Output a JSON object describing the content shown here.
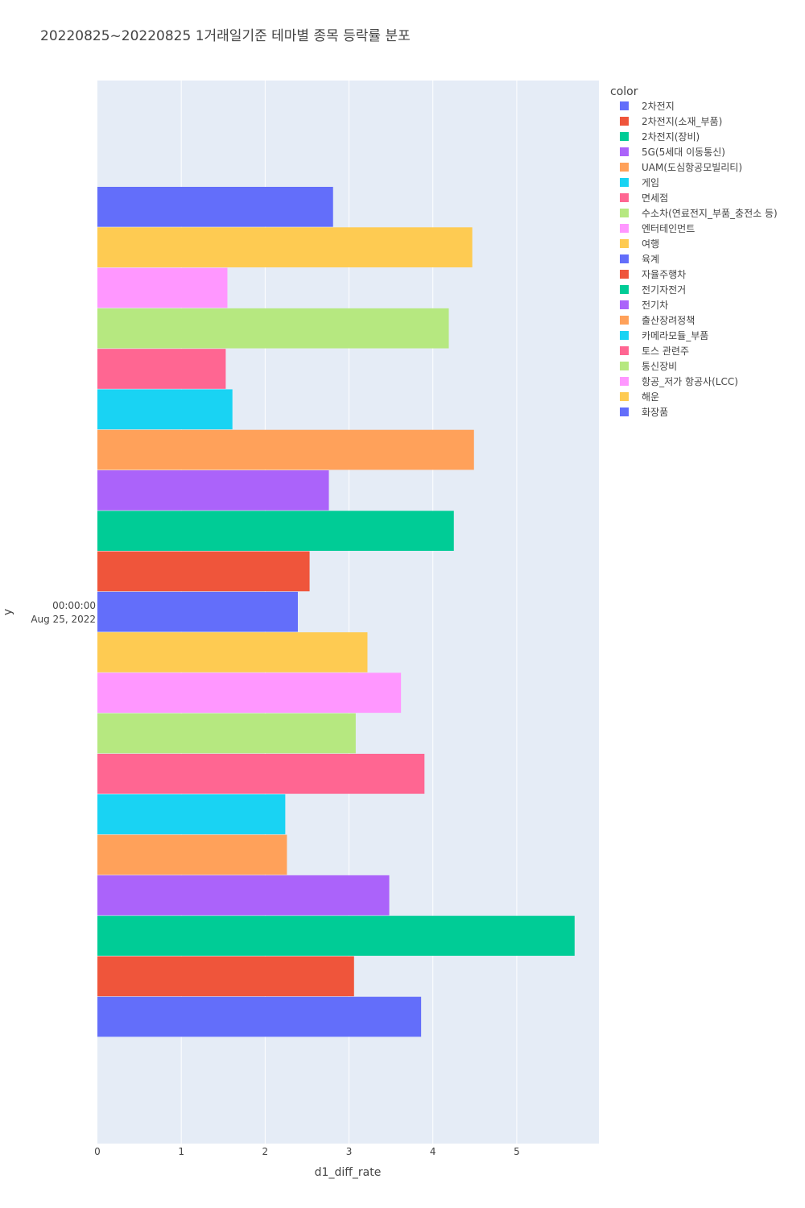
{
  "chart_data": {
    "type": "bar",
    "orientation": "horizontal",
    "title": "20220825~20220825 1거래일기준 테마별 종목 등락률 분포",
    "xlabel": "d1_diff_rate",
    "ylabel": "y",
    "y_tick_label": [
      "00:00:00",
      "Aug 25, 2022"
    ],
    "xlim": [
      0,
      5.98
    ],
    "x_ticks": [
      0,
      1,
      2,
      3,
      4,
      5
    ],
    "grid": true,
    "legend_title": "color",
    "legend_position": "top-right",
    "series": [
      {
        "name": "2차전지",
        "value": 3.86,
        "color": "#636efa"
      },
      {
        "name": "2차전지(소재_부품)",
        "value": 3.06,
        "color": "#EF553B"
      },
      {
        "name": "2차전지(장비)",
        "value": 5.69,
        "color": "#00cc96"
      },
      {
        "name": "5G(5세대 이동통신)",
        "value": 3.48,
        "color": "#ab63fa"
      },
      {
        "name": "UAM(도심항공모빌리티)",
        "value": 2.26,
        "color": "#FFA15A"
      },
      {
        "name": "게임",
        "value": 2.24,
        "color": "#19d3f3"
      },
      {
        "name": "면세점",
        "value": 3.9,
        "color": "#FF6692"
      },
      {
        "name": "수소차(연료전지_부품_충전소 등)",
        "value": 3.08,
        "color": "#B6E880"
      },
      {
        "name": "엔터테인먼트",
        "value": 3.62,
        "color": "#FF97FF"
      },
      {
        "name": "여행",
        "value": 3.22,
        "color": "#FECB52"
      },
      {
        "name": "육계",
        "value": 2.39,
        "color": "#636efa"
      },
      {
        "name": "자율주행차",
        "value": 2.53,
        "color": "#EF553B"
      },
      {
        "name": "전기자전거",
        "value": 4.25,
        "color": "#00cc96"
      },
      {
        "name": "전기차",
        "value": 2.76,
        "color": "#ab63fa"
      },
      {
        "name": "출산장려정책",
        "value": 4.49,
        "color": "#FFA15A"
      },
      {
        "name": "카메라모듈_부품",
        "value": 1.61,
        "color": "#19d3f3"
      },
      {
        "name": "토스 관련주",
        "value": 1.53,
        "color": "#FF6692"
      },
      {
        "name": "통신장비",
        "value": 4.19,
        "color": "#B6E880"
      },
      {
        "name": "항공_저가 항공사(LCC)",
        "value": 1.55,
        "color": "#FF97FF"
      },
      {
        "name": "해운",
        "value": 4.47,
        "color": "#FECB52"
      },
      {
        "name": "화장품",
        "value": 2.81,
        "color": "#636efa"
      }
    ]
  }
}
